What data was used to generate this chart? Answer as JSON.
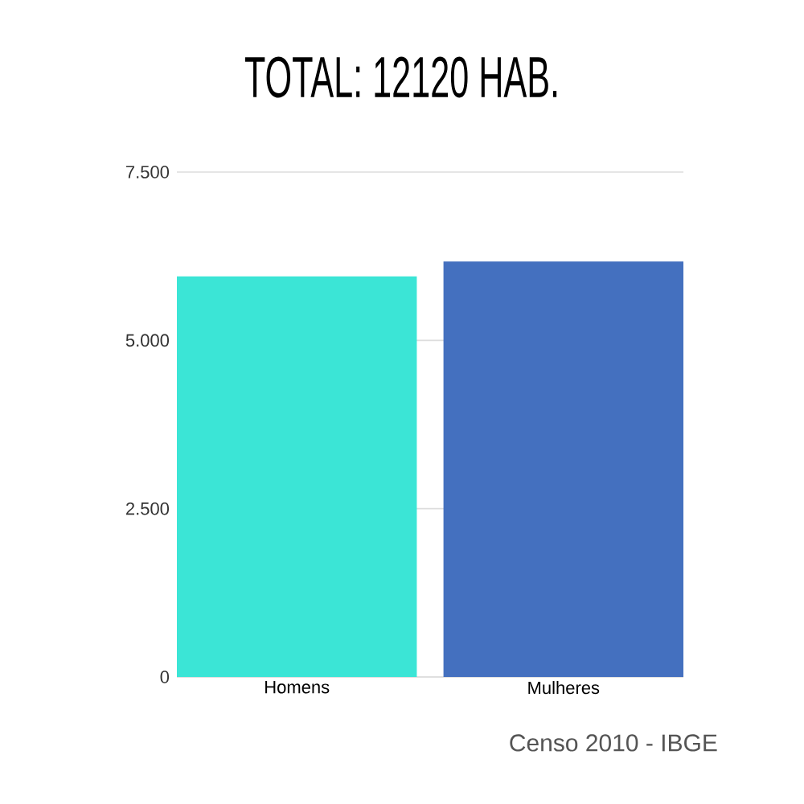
{
  "chart_data": {
    "type": "bar",
    "title": "TOTAL: 12120 HAB.",
    "categories": [
      "Homens",
      "Mulheres"
    ],
    "values": [
      5950,
      6170
    ],
    "colors": [
      "#3be5d6",
      "#4470bf"
    ],
    "ylim": [
      0,
      7500
    ],
    "yticks": [
      0,
      {
        "value": 2500,
        "label": "2.500"
      },
      {
        "value": 5000,
        "label": "5.000"
      },
      {
        "value": 7500,
        "label": "7.500"
      }
    ],
    "grid": "y",
    "annotations": [
      "Censo 2010 - IBGE"
    ]
  }
}
